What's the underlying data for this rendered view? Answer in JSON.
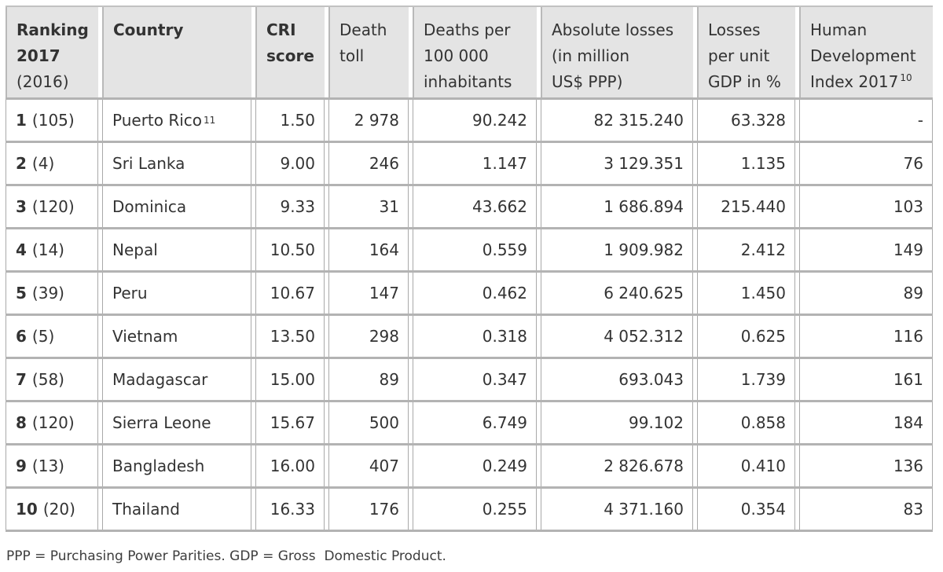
{
  "table": {
    "header": {
      "ranking": "Ranking\n2017",
      "ranking_sub": "(2016)",
      "country": "Country",
      "cri_score": "CRI\nscore",
      "death_toll": "Death\ntoll",
      "deaths_per_100k": "Deaths per\n100 000\ninhabitants",
      "absolute_losses": "Absolute losses\n(in million\nUS$ PPP)",
      "losses_per_gdp": "Losses\nper unit\nGDP in %",
      "hdi": "Human\nDevelopment\nIndex 2017",
      "hdi_sup": "10"
    },
    "rows": [
      {
        "rank": "1",
        "rank_prev": "(105)",
        "country": "Puerto Rico",
        "country_sup": "11",
        "cri_score": "1.50",
        "death_toll": "2 978",
        "deaths_per_100k": "90.242",
        "absolute_losses": "82 315.240",
        "losses_per_gdp": "63.328",
        "hdi": "-"
      },
      {
        "rank": "2",
        "rank_prev": "(4)",
        "country": "Sri Lanka",
        "cri_score": "9.00",
        "death_toll": "246",
        "deaths_per_100k": "1.147",
        "absolute_losses": "3 129.351",
        "losses_per_gdp": "1.135",
        "hdi": "76"
      },
      {
        "rank": "3",
        "rank_prev": "(120)",
        "country": "Dominica",
        "cri_score": "9.33",
        "death_toll": "31",
        "deaths_per_100k": "43.662",
        "absolute_losses": "1 686.894",
        "losses_per_gdp": "215.440",
        "hdi": "103"
      },
      {
        "rank": "4",
        "rank_prev": "(14)",
        "country": "Nepal",
        "cri_score": "10.50",
        "death_toll": "164",
        "deaths_per_100k": "0.559",
        "absolute_losses": "1 909.982",
        "losses_per_gdp": "2.412",
        "hdi": "149"
      },
      {
        "rank": "5",
        "rank_prev": "(39)",
        "country": "Peru",
        "cri_score": "10.67",
        "death_toll": "147",
        "deaths_per_100k": "0.462",
        "absolute_losses": "6 240.625",
        "losses_per_gdp": "1.450",
        "hdi": "89"
      },
      {
        "rank": "6",
        "rank_prev": "(5)",
        "country": "Vietnam",
        "cri_score": "13.50",
        "death_toll": "298",
        "deaths_per_100k": "0.318",
        "absolute_losses": "4 052.312",
        "losses_per_gdp": "0.625",
        "hdi": "116"
      },
      {
        "rank": "7",
        "rank_prev": "(58)",
        "country": "Madagascar",
        "cri_score": "15.00",
        "death_toll": "89",
        "deaths_per_100k": "0.347",
        "absolute_losses": "693.043",
        "losses_per_gdp": "1.739",
        "hdi": "161"
      },
      {
        "rank": "8",
        "rank_prev": "(120)",
        "country": "Sierra Leone",
        "cri_score": "15.67",
        "death_toll": "500",
        "deaths_per_100k": "6.749",
        "absolute_losses": "99.102",
        "losses_per_gdp": "0.858",
        "hdi": "184"
      },
      {
        "rank": "9",
        "rank_prev": "(13)",
        "country": "Bangladesh",
        "cri_score": "16.00",
        "death_toll": "407",
        "deaths_per_100k": "0.249",
        "absolute_losses": "2 826.678",
        "losses_per_gdp": "0.410",
        "hdi": "136"
      },
      {
        "rank": "10",
        "rank_prev": "(20)",
        "country": "Thailand",
        "cri_score": "16.33",
        "death_toll": "176",
        "deaths_per_100k": "0.255",
        "absolute_losses": "4 371.160",
        "losses_per_gdp": "0.354",
        "hdi": "83"
      }
    ]
  },
  "footer": {
    "note": "PPP = Purchasing Power Parities. GDP = Gross  Domestic Product."
  },
  "colors": {
    "header_bg": "#e4e4e4",
    "cell_border": "#a9a9a9",
    "row_separator": "#b3b3b3",
    "text": "#333333"
  }
}
